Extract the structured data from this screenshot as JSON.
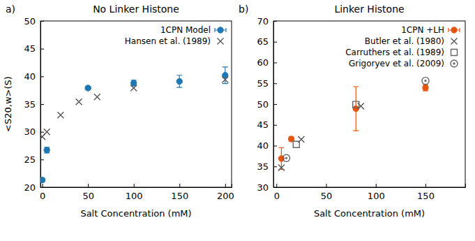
{
  "chart_data": [
    {
      "type": "scatter",
      "label": "a)",
      "title": "No Linker Histone",
      "xlabel": "Salt Concentration (mM)",
      "ylabel": "<S20,w>(S)",
      "xlim": [
        -2,
        207
      ],
      "xticks": [
        0,
        50,
        100,
        150,
        200
      ],
      "ylim": [
        20,
        50
      ],
      "yticks": [
        20,
        25,
        30,
        35,
        40,
        45,
        50
      ],
      "legend": "upper right",
      "series": [
        {
          "name": "1CPN Model",
          "color": "#1f78b4",
          "marker": "circle",
          "x": [
            0,
            5,
            50,
            100,
            150,
            200
          ],
          "values": [
            21.3,
            26.7,
            37.9,
            38.8,
            39.1,
            40.2
          ],
          "errors": [
            0.3,
            0.5,
            0.3,
            0.5,
            1.1,
            1.5
          ]
        },
        {
          "name": "Hansen et al. (1989)",
          "color": "#555555",
          "marker": "x",
          "x": [
            0,
            5,
            20,
            40,
            60,
            100,
            200
          ],
          "values": [
            29.1,
            30.0,
            33.0,
            35.4,
            36.3,
            37.9,
            39.4
          ]
        }
      ]
    },
    {
      "type": "scatter",
      "label": "b)",
      "title": "Linker Histone",
      "xlabel": "Salt Concentration (mM)",
      "xlim": [
        -3,
        190
      ],
      "xticks": [
        0,
        50,
        100,
        150
      ],
      "ylim": [
        30,
        70
      ],
      "yticks": [
        30,
        35,
        40,
        45,
        50,
        55,
        60,
        65,
        70
      ],
      "legend": "upper right",
      "series": [
        {
          "name": "1CPN +LH",
          "color": "#e6550d",
          "marker": "circle",
          "x": [
            5,
            15,
            80,
            150
          ],
          "values": [
            36.9,
            41.6,
            48.9,
            53.9
          ],
          "errors": [
            2.6,
            0.5,
            5.3,
            0.7
          ]
        },
        {
          "name": "Butler et al. (1980)",
          "color": "#555555",
          "marker": "x",
          "x": [
            5,
            25,
            85
          ],
          "values": [
            34.7,
            41.5,
            49.5
          ]
        },
        {
          "name": "Carruthers et al. (1989)",
          "color": "#666666",
          "marker": "square",
          "x": [
            20,
            80
          ],
          "values": [
            40.3,
            49.9
          ]
        },
        {
          "name": "Grigoryev et al. (2009)",
          "color": "#666666",
          "marker": "dotted-circle",
          "x": [
            10,
            150
          ],
          "values": [
            37.0,
            55.6
          ]
        }
      ]
    }
  ]
}
